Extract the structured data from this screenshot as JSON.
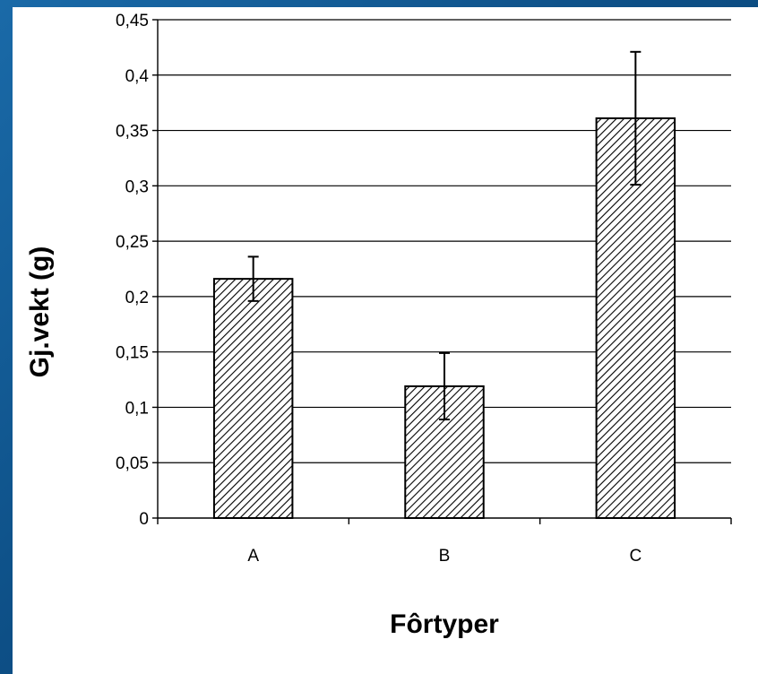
{
  "chart_data": {
    "type": "bar",
    "title": "",
    "xlabel": "Fôrtyper",
    "ylabel": "Gj.vekt (g)",
    "categories": [
      "A",
      "B",
      "C"
    ],
    "values": [
      0.216,
      0.119,
      0.361
    ],
    "error": [
      0.02,
      0.03,
      0.06
    ],
    "ylim": [
      0,
      0.45
    ],
    "yticks": [
      0,
      0.05,
      0.1,
      0.15,
      0.2,
      0.25,
      0.3,
      0.35,
      0.4,
      0.45
    ],
    "ytick_labels": [
      "0",
      "0,05",
      "0,1",
      "0,15",
      "0,2",
      "0,25",
      "0,3",
      "0,35",
      "0,4",
      "0,45"
    ],
    "grid": true,
    "bar_fill": "hatched",
    "legend": "none"
  }
}
